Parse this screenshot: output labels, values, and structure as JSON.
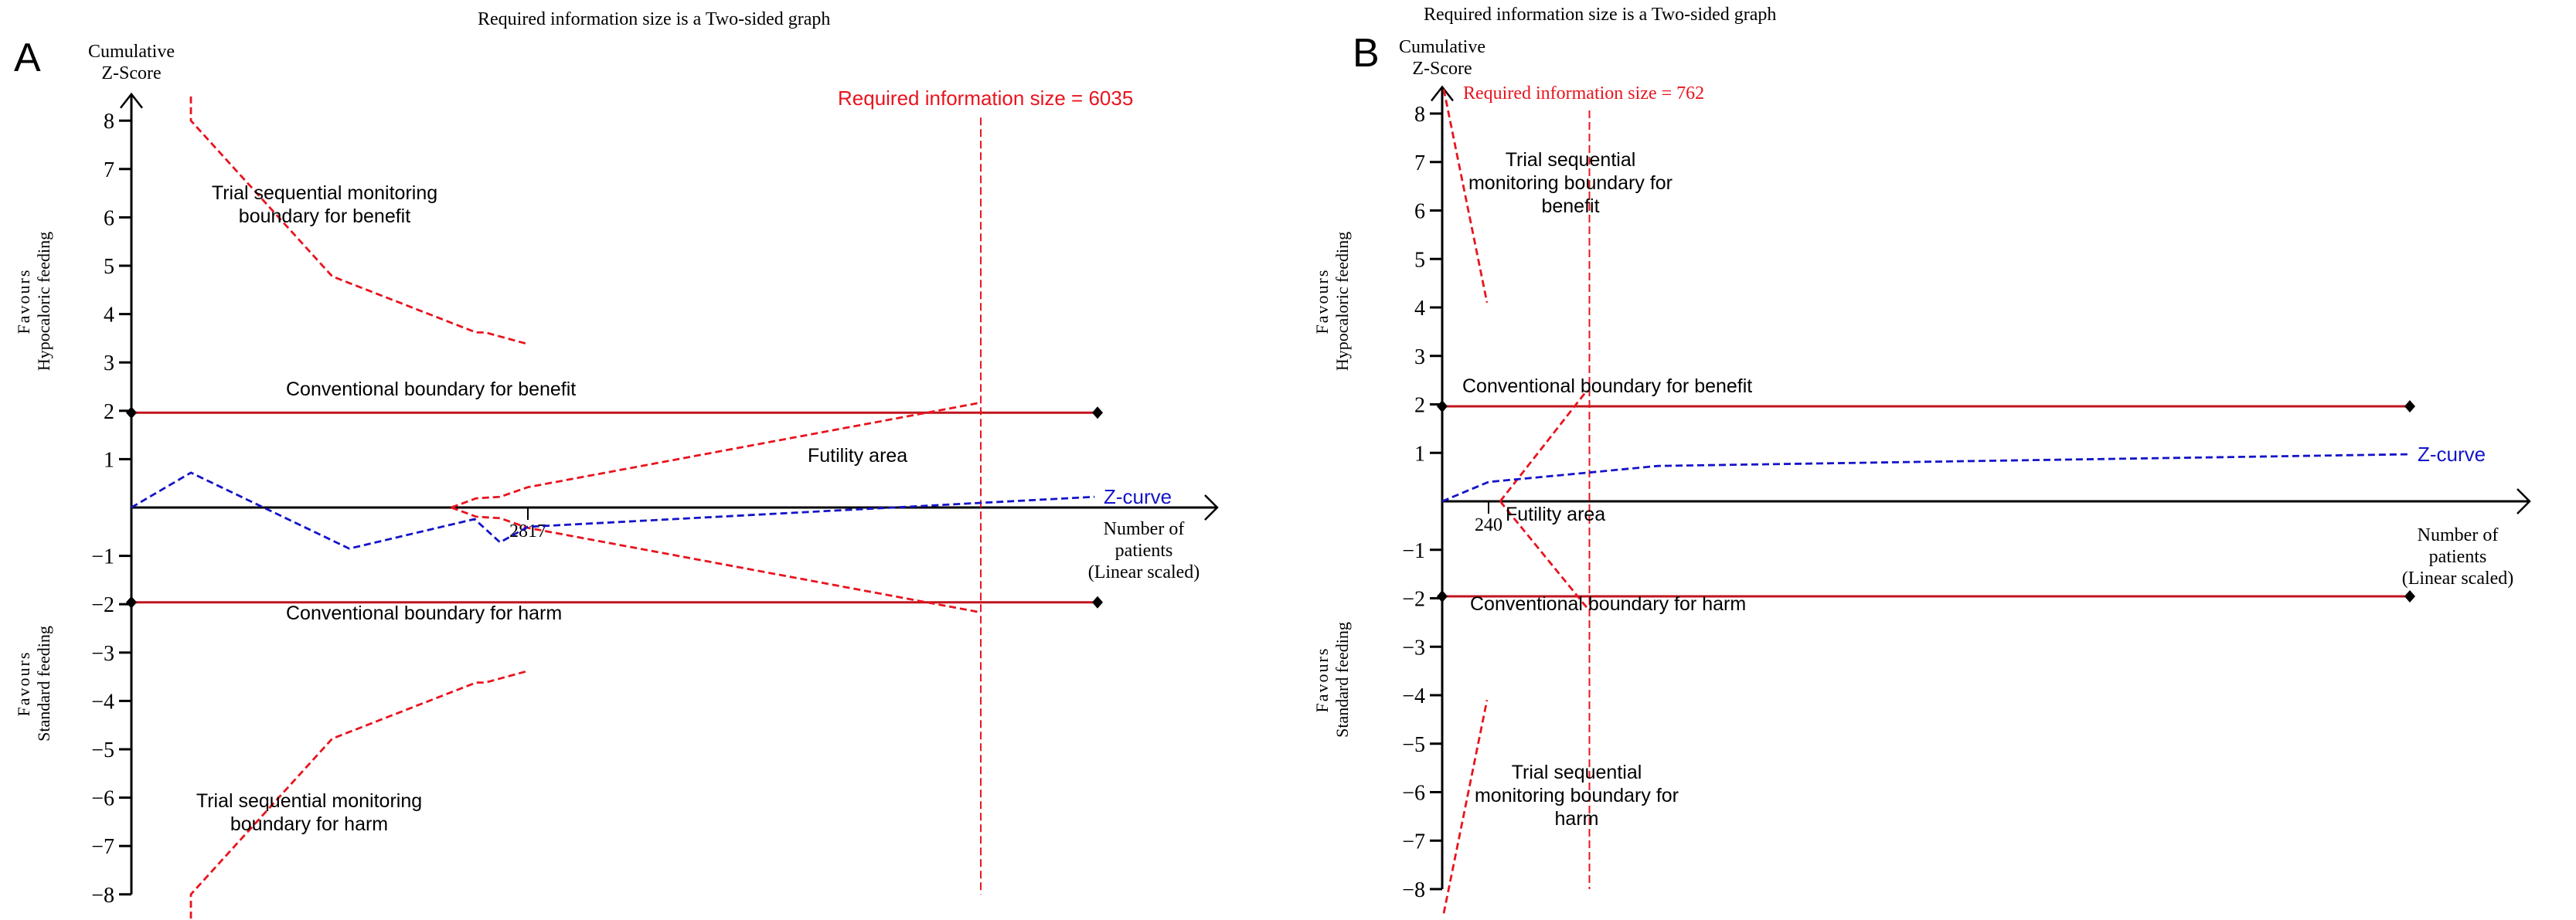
{
  "colors": {
    "axis": "#000000",
    "boundary": "#e8141e",
    "conventional": "#c0141e",
    "zcurve": "#1414c8",
    "text": "#000000"
  },
  "chart_data": [
    {
      "type": "line",
      "panel_label": "A",
      "title": "Required information size is a Two-sided graph",
      "ylabel": "Cumulative Z-Score",
      "ylabel_lines": [
        "Cumulative",
        "Z-Score"
      ],
      "xlabel_lines": [
        "Number of",
        "patients",
        "(Linear scaled)"
      ],
      "favours_top": [
        "Favours",
        "Hypocaloric feeding"
      ],
      "favours_bottom": [
        "Favours",
        "Standard feeding"
      ],
      "yticks": [
        8,
        7,
        6,
        5,
        4,
        3,
        2,
        1,
        -1,
        -2,
        -3,
        -4,
        -5,
        -6,
        -7,
        -8
      ],
      "ylim": [
        -8,
        8
      ],
      "xlim": [
        0,
        7715
      ],
      "x_tick": {
        "value": 2817,
        "label": "2817"
      },
      "ris": {
        "value": 6035,
        "label": "Required information size = 6035",
        "z_range": [
          -8,
          8
        ]
      },
      "labels": {
        "benefit_tsmb": [
          "Trial sequential monitoring",
          "boundary for benefit"
        ],
        "harm_tsmb": [
          "Trial sequential monitoring",
          "boundary for harm"
        ],
        "conv_benefit": "Conventional boundary for benefit",
        "conv_harm": "Conventional boundary for harm",
        "futility": "Futility area",
        "zcurve": "Z-curve"
      },
      "series": [
        {
          "name": "Trial sequential monitoring boundary for benefit",
          "style": "dashed",
          "color_key": "boundary",
          "points": [
            [
              423,
              8.5
            ],
            [
              423,
              8.0
            ],
            [
              1427,
              4.78
            ],
            [
              2449,
              3.62
            ],
            [
              2515,
              3.62
            ],
            [
              2817,
              3.38
            ]
          ]
        },
        {
          "name": "Trial sequential monitoring boundary for harm",
          "style": "dashed",
          "color_key": "boundary",
          "points": [
            [
              423,
              -8.5
            ],
            [
              423,
              -8.0
            ],
            [
              1427,
              -4.78
            ],
            [
              2449,
              -3.62
            ],
            [
              2515,
              -3.62
            ],
            [
              2817,
              -3.38
            ]
          ]
        },
        {
          "name": "Futility boundary upper",
          "style": "dashed",
          "color_key": "boundary",
          "points": [
            [
              2273,
              0
            ],
            [
              2449,
              0.19
            ],
            [
              2619,
              0.22
            ],
            [
              2817,
              0.42
            ],
            [
              6035,
              2.17
            ]
          ]
        },
        {
          "name": "Futility boundary lower",
          "style": "dashed",
          "color_key": "boundary",
          "points": [
            [
              2273,
              0
            ],
            [
              2449,
              -0.19
            ],
            [
              2619,
              -0.22
            ],
            [
              2817,
              -0.42
            ],
            [
              6035,
              -2.17
            ]
          ]
        },
        {
          "name": "Z-curve",
          "style": "dashed",
          "color_key": "zcurve",
          "points": [
            [
              0,
              0
            ],
            [
              423,
              0.72
            ],
            [
              1548,
              -0.85
            ],
            [
              2438,
              -0.24
            ],
            [
              2619,
              -0.72
            ],
            [
              2817,
              -0.4
            ],
            [
              6843,
              0.22
            ]
          ]
        }
      ],
      "conventional": {
        "upper": 1.96,
        "lower": -1.96,
        "x_end": 6864
      }
    },
    {
      "type": "line",
      "panel_label": "B",
      "title": "Required information size is a Two-sided graph",
      "ylabel": "Cumulative Z-Score",
      "ylabel_lines": [
        "Cumulative",
        "Z-Score"
      ],
      "xlabel_lines": [
        "Number of",
        "patients",
        "(Linear scaled)"
      ],
      "favours_top": [
        "Favours",
        "Hypocaloric feeding"
      ],
      "favours_bottom": [
        "Favours",
        "Standard feeding"
      ],
      "yticks": [
        8,
        7,
        6,
        5,
        4,
        3,
        2,
        1,
        -1,
        -2,
        -3,
        -4,
        -5,
        -6,
        -7,
        -8
      ],
      "ylim": [
        -8,
        8
      ],
      "xlim": [
        0,
        5628
      ],
      "x_tick": {
        "value": 240,
        "label": "240"
      },
      "ris": {
        "value": 762,
        "label": "Required information size = 762",
        "z_range": [
          -8,
          8
        ]
      },
      "labels": {
        "benefit_tsmb": [
          "Trial sequential",
          "monitoring boundary for",
          "benefit"
        ],
        "harm_tsmb": [
          "Trial sequential",
          "monitoring boundary for",
          "harm"
        ],
        "conv_benefit": "Conventional boundary for benefit",
        "conv_harm": "Conventional boundary for harm",
        "futility": "Futility area",
        "zcurve": "Z-curve"
      },
      "series": [
        {
          "name": "Trial sequential monitoring boundary for benefit",
          "style": "dashed",
          "color_key": "boundary",
          "points": [
            [
              8,
              8.5
            ],
            [
              232,
              4.1
            ]
          ]
        },
        {
          "name": "Trial sequential monitoring boundary for harm",
          "style": "dashed",
          "color_key": "boundary",
          "points": [
            [
              8,
              -8.5
            ],
            [
              232,
              -4.1
            ]
          ]
        },
        {
          "name": "Futility boundary upper",
          "style": "dashed",
          "color_key": "boundary",
          "points": [
            [
              300,
              0
            ],
            [
              750,
              2.29
            ]
          ]
        },
        {
          "name": "Futility boundary lower",
          "style": "dashed",
          "color_key": "boundary",
          "points": [
            [
              300,
              0
            ],
            [
              750,
              -2.2
            ]
          ]
        },
        {
          "name": "Z-curve",
          "style": "dashed",
          "color_key": "zcurve",
          "points": [
            [
              0,
              0
            ],
            [
              240,
              0.4
            ],
            [
              748,
              0.59
            ],
            [
              1116,
              0.73
            ],
            [
              4996,
              0.97
            ]
          ]
        }
      ],
      "conventional": {
        "upper": 1.96,
        "lower": -1.96,
        "x_end": 5008
      }
    }
  ]
}
